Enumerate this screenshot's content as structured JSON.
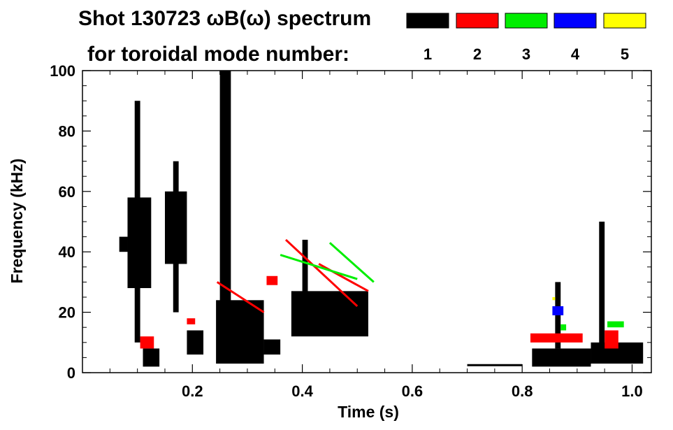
{
  "chart_data": {
    "type": "heatmap",
    "title": "Shot 130723 ωB(ω) spectrum",
    "subtitle": "for toroidal mode number:",
    "xlabel": "Time (s)",
    "ylabel": "Frequency (kHz)",
    "xlim": [
      0.0,
      1.035
    ],
    "ylim": [
      0,
      100
    ],
    "x_ticks": [
      {
        "value": 0.2,
        "label": "0.2"
      },
      {
        "value": 0.4,
        "label": "0.4"
      },
      {
        "value": 0.6,
        "label": "0.6"
      },
      {
        "value": 0.8,
        "label": "0.8"
      },
      {
        "value": 1.0,
        "label": "1.0"
      }
    ],
    "y_ticks": [
      {
        "value": 0,
        "label": "0"
      },
      {
        "value": 20,
        "label": "20"
      },
      {
        "value": 40,
        "label": "40"
      },
      {
        "value": 60,
        "label": "60"
      },
      {
        "value": 80,
        "label": "80"
      },
      {
        "value": 100,
        "label": "100"
      }
    ],
    "legend": [
      {
        "mode": "1",
        "color": "#000000"
      },
      {
        "mode": "2",
        "color": "#ff0000"
      },
      {
        "mode": "3",
        "color": "#00ee00"
      },
      {
        "mode": "4",
        "color": "#0000ff"
      },
      {
        "mode": "5",
        "color": "#ffff00"
      }
    ],
    "features": [
      {
        "mode": 1,
        "t0": 0.067,
        "t1": 0.082,
        "f0": 40,
        "f1": 45
      },
      {
        "mode": 1,
        "t0": 0.082,
        "t1": 0.125,
        "f0": 28,
        "f1": 58
      },
      {
        "mode": 1,
        "t0": 0.095,
        "t1": 0.105,
        "f0": 10,
        "f1": 90
      },
      {
        "mode": 1,
        "t0": 0.11,
        "t1": 0.14,
        "f0": 2,
        "f1": 8
      },
      {
        "mode": 1,
        "t0": 0.15,
        "t1": 0.19,
        "f0": 36,
        "f1": 60
      },
      {
        "mode": 1,
        "t0": 0.165,
        "t1": 0.175,
        "f0": 20,
        "f1": 70
      },
      {
        "mode": 1,
        "t0": 0.19,
        "t1": 0.22,
        "f0": 6,
        "f1": 14
      },
      {
        "mode": 1,
        "t0": 0.243,
        "t1": 0.33,
        "f0": 3,
        "f1": 24
      },
      {
        "mode": 1,
        "t0": 0.25,
        "t1": 0.27,
        "f0": 20,
        "f1": 100
      },
      {
        "mode": 1,
        "t0": 0.33,
        "t1": 0.36,
        "f0": 6,
        "f1": 11
      },
      {
        "mode": 1,
        "t0": 0.38,
        "t1": 0.52,
        "f0": 12,
        "f1": 27
      },
      {
        "mode": 1,
        "t0": 0.4,
        "t1": 0.41,
        "f0": 25,
        "f1": 44
      },
      {
        "mode": 1,
        "t0": 0.818,
        "t1": 0.925,
        "f0": 2,
        "f1": 8
      },
      {
        "mode": 1,
        "t0": 0.925,
        "t1": 1.02,
        "f0": 3,
        "f1": 10
      },
      {
        "mode": 1,
        "t0": 0.86,
        "t1": 0.87,
        "f0": 8,
        "f1": 30
      },
      {
        "mode": 1,
        "t0": 0.94,
        "t1": 0.95,
        "f0": 8,
        "f1": 50
      },
      {
        "mode": 2,
        "t0": 0.105,
        "t1": 0.13,
        "f0": 8,
        "f1": 12
      },
      {
        "mode": 2,
        "t0": 0.19,
        "t1": 0.205,
        "f0": 16,
        "f1": 18
      },
      {
        "mode": 2,
        "t0": 0.335,
        "t1": 0.355,
        "f0": 29,
        "f1": 32
      },
      {
        "mode": 2,
        "t0": 0.815,
        "t1": 0.91,
        "f0": 10,
        "f1": 13
      },
      {
        "mode": 2,
        "t0": 0.95,
        "t1": 0.975,
        "f0": 8,
        "f1": 14
      },
      {
        "mode": 3,
        "t0": 0.87,
        "t1": 0.88,
        "f0": 14,
        "f1": 16
      },
      {
        "mode": 3,
        "t0": 0.955,
        "t1": 0.985,
        "f0": 15,
        "f1": 17
      },
      {
        "mode": 4,
        "t0": 0.855,
        "t1": 0.875,
        "f0": 19,
        "f1": 22
      },
      {
        "mode": 5,
        "t0": 0.855,
        "t1": 0.86,
        "f0": 24,
        "f1": 25
      }
    ],
    "chirps": [
      {
        "mode": 2,
        "t0": 0.245,
        "f0": 30,
        "t1": 0.33,
        "f1": 20
      },
      {
        "mode": 2,
        "t0": 0.37,
        "f0": 44,
        "t1": 0.5,
        "f1": 22
      },
      {
        "mode": 2,
        "t0": 0.43,
        "f0": 36,
        "t1": 0.52,
        "f1": 27
      },
      {
        "mode": 3,
        "t0": 0.36,
        "f0": 39,
        "t1": 0.5,
        "f1": 31
      },
      {
        "mode": 3,
        "t0": 0.45,
        "f0": 43,
        "t1": 0.53,
        "f1": 30
      },
      {
        "mode": 1,
        "t0": 0.7,
        "f0": 2.5,
        "t1": 0.8,
        "f1": 2.5
      }
    ]
  }
}
